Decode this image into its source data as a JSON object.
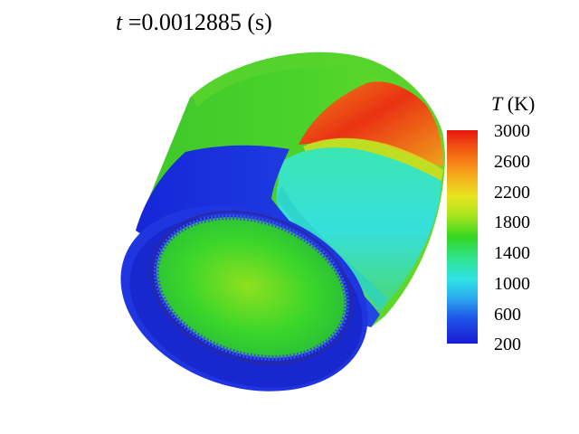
{
  "title": {
    "var": "t",
    "text": " =0.0012885 (s)"
  },
  "colorbar": {
    "var": "T",
    "unit": " (K)",
    "ticks": [
      "3000",
      "2600",
      "2200",
      "1800",
      "1400",
      "1000",
      "600",
      "200"
    ],
    "colors": [
      "#e8160f",
      "#f7a21a",
      "#e9e420",
      "#35d621",
      "#2fe3e6",
      "#1f56e8",
      "#1a1ad6"
    ]
  }
}
